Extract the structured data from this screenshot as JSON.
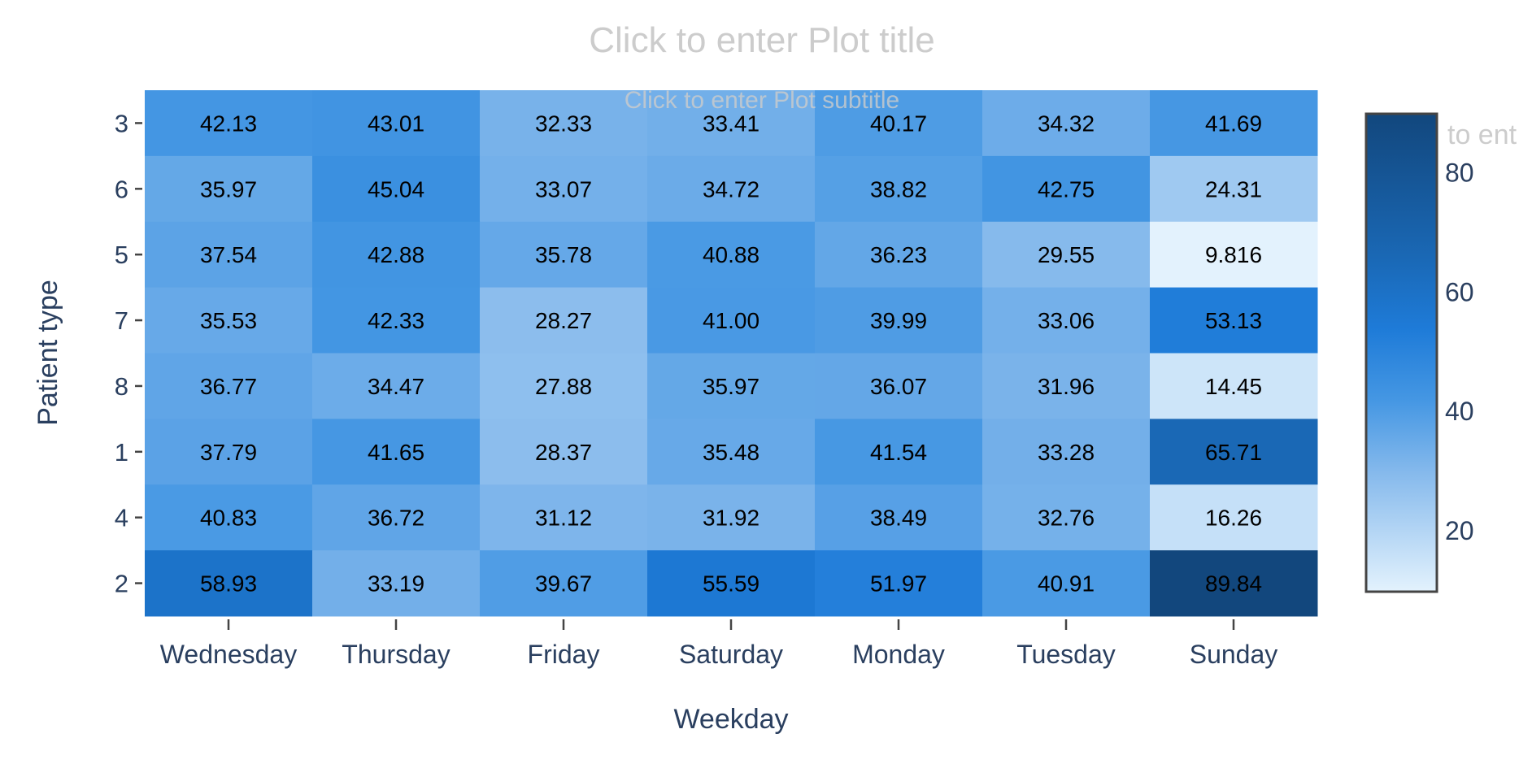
{
  "chart_data": {
    "type": "heatmap",
    "title": "Click to enter Plot title",
    "subtitle": "Click to enter Plot subtitle",
    "xlabel": "Weekday",
    "ylabel": "Patient type",
    "x_categories": [
      "Wednesday",
      "Thursday",
      "Friday",
      "Saturday",
      "Monday",
      "Tuesday",
      "Sunday"
    ],
    "y_categories": [
      "3",
      "6",
      "5",
      "7",
      "8",
      "1",
      "4",
      "2"
    ],
    "values": [
      [
        42.13,
        43.01,
        32.33,
        33.41,
        40.17,
        34.32,
        41.69
      ],
      [
        35.97,
        45.04,
        33.07,
        34.72,
        38.82,
        42.75,
        24.31
      ],
      [
        37.54,
        42.88,
        35.78,
        40.88,
        36.23,
        29.55,
        9.816
      ],
      [
        35.53,
        42.33,
        28.27,
        41.0,
        39.99,
        33.06,
        53.13
      ],
      [
        36.77,
        34.47,
        27.88,
        35.97,
        36.07,
        31.96,
        14.45
      ],
      [
        37.79,
        41.65,
        28.37,
        35.48,
        41.54,
        33.28,
        65.71
      ],
      [
        40.83,
        36.72,
        31.12,
        31.92,
        38.49,
        32.76,
        16.26
      ],
      [
        58.93,
        33.19,
        39.67,
        55.59,
        51.97,
        40.91,
        89.84
      ]
    ],
    "labels": [
      [
        "42.13",
        "43.01",
        "32.33",
        "33.41",
        "40.17",
        "34.32",
        "41.69"
      ],
      [
        "35.97",
        "45.04",
        "33.07",
        "34.72",
        "38.82",
        "42.75",
        "24.31"
      ],
      [
        "37.54",
        "42.88",
        "35.78",
        "40.88",
        "36.23",
        "29.55",
        "9.816"
      ],
      [
        "35.53",
        "42.33",
        "28.27",
        "41.00",
        "39.99",
        "33.06",
        "53.13"
      ],
      [
        "36.77",
        "34.47",
        "27.88",
        "35.97",
        "36.07",
        "31.96",
        "14.45"
      ],
      [
        "37.79",
        "41.65",
        "28.37",
        "35.48",
        "41.54",
        "33.28",
        "65.71"
      ],
      [
        "40.83",
        "36.72",
        "31.12",
        "31.92",
        "38.49",
        "32.76",
        "16.26"
      ],
      [
        "58.93",
        "33.19",
        "39.67",
        "55.59",
        "51.97",
        "40.91",
        "89.84"
      ]
    ],
    "zrange": [
      9.816,
      89.84
    ],
    "colorbar": {
      "title_visible": "to ent",
      "ticks": [
        20,
        40,
        60,
        80
      ],
      "tick_labels": [
        "20",
        "40",
        "60",
        "80"
      ]
    },
    "colorscale": [
      [
        0,
        "#e3f2fd"
      ],
      [
        0.25,
        "#85b9ec"
      ],
      [
        0.4,
        "#4597e3"
      ],
      [
        0.55,
        "#1e7bd8"
      ],
      [
        0.7,
        "#1a68b5"
      ],
      [
        1,
        "#12477d"
      ]
    ],
    "text_color": "#000000",
    "axis_color": "#2a3f5f",
    "placeholder_color": "#cccccc",
    "legend": "colorbar-right",
    "grid": false
  }
}
